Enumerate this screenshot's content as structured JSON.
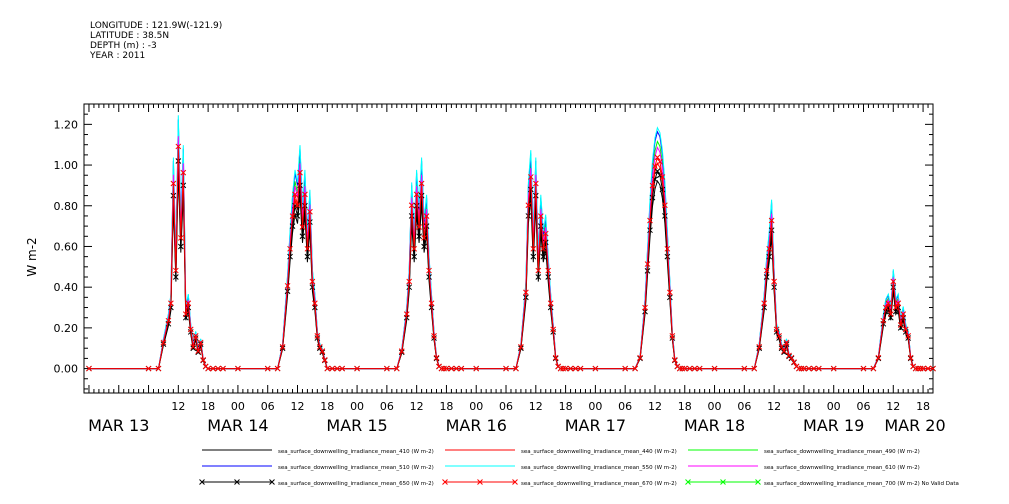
{
  "header": {
    "longitude": "LONGITUDE : 121.9W(-121.9)",
    "latitude": "LATITUDE : 38.5N",
    "depth": "DEPTH (m) : -3",
    "year": "YEAR : 2011"
  },
  "chart_data": {
    "type": "line",
    "ylabel": "W m-2",
    "ylim": [
      -0.12,
      1.3
    ],
    "yticks": [
      0.0,
      0.2,
      0.4,
      0.6,
      0.8,
      1.0,
      1.2
    ],
    "ytick_labels": [
      "0.00",
      "0.20",
      "0.40",
      "0.60",
      "0.80",
      "1.00",
      "1.20"
    ],
    "x_unit": "hours since MAR 13 00:00",
    "xlim": [
      -7,
      164
    ],
    "hour_ticks": [
      {
        "h": 12,
        "label": "12"
      },
      {
        "h": 18,
        "label": "18"
      },
      {
        "h": 24,
        "label": "00"
      },
      {
        "h": 30,
        "label": "06"
      },
      {
        "h": 36,
        "label": "12"
      },
      {
        "h": 42,
        "label": "18"
      },
      {
        "h": 48,
        "label": "00"
      },
      {
        "h": 54,
        "label": "06"
      },
      {
        "h": 60,
        "label": "12"
      },
      {
        "h": 66,
        "label": "18"
      },
      {
        "h": 72,
        "label": "00"
      },
      {
        "h": 78,
        "label": "06"
      },
      {
        "h": 84,
        "label": "12"
      },
      {
        "h": 90,
        "label": "18"
      },
      {
        "h": 96,
        "label": "00"
      },
      {
        "h": 102,
        "label": "06"
      },
      {
        "h": 108,
        "label": "12"
      },
      {
        "h": 114,
        "label": "18"
      },
      {
        "h": 120,
        "label": "00"
      },
      {
        "h": 126,
        "label": "06"
      },
      {
        "h": 132,
        "label": "12"
      },
      {
        "h": 138,
        "label": "18"
      },
      {
        "h": 144,
        "label": "00"
      },
      {
        "h": 150,
        "label": "06"
      },
      {
        "h": 156,
        "label": "12"
      },
      {
        "h": 162,
        "label": "18"
      },
      {
        "h": 168,
        "label": "00"
      },
      {
        "h": 174,
        "label": "06"
      }
    ],
    "day_labels": [
      {
        "h": 0,
        "label": "MAR 13"
      },
      {
        "h": 24,
        "label": "MAR 14"
      },
      {
        "h": 48,
        "label": "MAR 15"
      },
      {
        "h": 72,
        "label": "MAR 16"
      },
      {
        "h": 96,
        "label": "MAR 17"
      },
      {
        "h": 120,
        "label": "MAR 18"
      },
      {
        "h": 144,
        "label": "MAR 19"
      },
      {
        "h": 168,
        "label": "MAR 20"
      }
    ],
    "base_profile_hours": [
      0,
      6,
      8,
      9,
      10,
      10.5,
      11,
      11.5,
      12,
      12.5,
      13,
      13.5,
      14,
      14.5,
      15,
      15.5,
      16,
      16.5,
      17,
      17.5,
      18,
      19,
      20,
      21,
      24
    ],
    "days": [
      {
        "day_start": 0,
        "values": [
          0,
          0,
          0,
          0.12,
          0.22,
          0.3,
          0.85,
          0.45,
          1.02,
          0.6,
          0.9,
          0.25,
          0.3,
          0.18,
          0.1,
          0.15,
          0.08,
          0.12,
          0.04,
          0.01,
          0,
          0,
          0,
          0,
          0
        ]
      },
      {
        "day_start": 24,
        "values": [
          0,
          0,
          0,
          0.1,
          0.38,
          0.55,
          0.7,
          0.8,
          0.75,
          0.9,
          0.65,
          0.8,
          0.55,
          0.72,
          0.4,
          0.3,
          0.15,
          0.1,
          0.08,
          0.04,
          0,
          0,
          0,
          0,
          0
        ]
      },
      {
        "day_start": 48,
        "values": [
          0,
          0,
          0,
          0.08,
          0.25,
          0.4,
          0.75,
          0.55,
          0.8,
          0.65,
          0.85,
          0.6,
          0.7,
          0.45,
          0.3,
          0.15,
          0.05,
          0.01,
          0,
          0,
          0,
          0,
          0,
          0,
          0
        ]
      },
      {
        "day_start": 72,
        "values": [
          0,
          0,
          0,
          0.1,
          0.35,
          0.75,
          0.88,
          0.55,
          0.85,
          0.45,
          0.7,
          0.55,
          0.62,
          0.45,
          0.3,
          0.18,
          0.05,
          0.01,
          0,
          0,
          0,
          0,
          0,
          0,
          0
        ]
      },
      {
        "day_start": 96,
        "values": [
          0,
          0,
          0,
          0.05,
          0.28,
          0.48,
          0.68,
          0.84,
          0.93,
          0.97,
          0.95,
          0.88,
          0.75,
          0.55,
          0.35,
          0.15,
          0.04,
          0.01,
          0,
          0,
          0,
          0,
          0,
          0,
          0
        ]
      },
      {
        "day_start": 120,
        "values": [
          0,
          0,
          0,
          0.1,
          0.3,
          0.45,
          0.55,
          0.68,
          0.4,
          0.18,
          0.15,
          0.1,
          0.08,
          0.12,
          0.06,
          0.05,
          0.03,
          0.01,
          0,
          0,
          0,
          0,
          0,
          0,
          0
        ]
      },
      {
        "day_start": 144,
        "values": [
          0,
          0,
          0,
          0.05,
          0.22,
          0.28,
          0.3,
          0.25,
          0.4,
          0.28,
          0.3,
          0.2,
          0.25,
          0.18,
          0.15,
          0.05,
          0.01,
          0,
          0,
          0,
          0,
          0,
          0,
          0,
          0
        ]
      }
    ],
    "series": [
      {
        "name": "sea_surface_downwelling_irradiance_mean_410 (W m-2)",
        "color": "#000000",
        "scale": 0.95,
        "marker": false
      },
      {
        "name": "sea_surface_downwelling_irradiance_mean_440 (W m-2)",
        "color": "#ff0000",
        "scale": 1.04,
        "marker": false
      },
      {
        "name": "sea_surface_downwelling_irradiance_mean_490 (W m-2)",
        "color": "#00ff00",
        "scale": 1.15,
        "marker": false
      },
      {
        "name": "sea_surface_downwelling_irradiance_mean_510 (W m-2)",
        "color": "#0000ff",
        "scale": 1.2,
        "marker": false
      },
      {
        "name": "sea_surface_downwelling_irradiance_mean_550 (W m-2)",
        "color": "#00ffff",
        "scale": 1.22,
        "marker": false
      },
      {
        "name": "sea_surface_downwelling_irradiance_mean_610 (W m-2)",
        "color": "#ff00ff",
        "scale": 1.12,
        "marker": false
      },
      {
        "name": "sea_surface_downwelling_irradiance_mean_650 (W m-2)",
        "color": "#000000",
        "scale": 1.0,
        "marker": true
      },
      {
        "name": "sea_surface_downwelling_irradiance_mean_670 (W m-2)",
        "color": "#ff0000",
        "scale": 1.07,
        "marker": true
      },
      {
        "name": "sea_surface_downwelling_irradiance_mean_700 (W m-2) No Valid Data",
        "color": "#00ff00",
        "scale": 0,
        "marker": true,
        "empty": true
      }
    ]
  }
}
